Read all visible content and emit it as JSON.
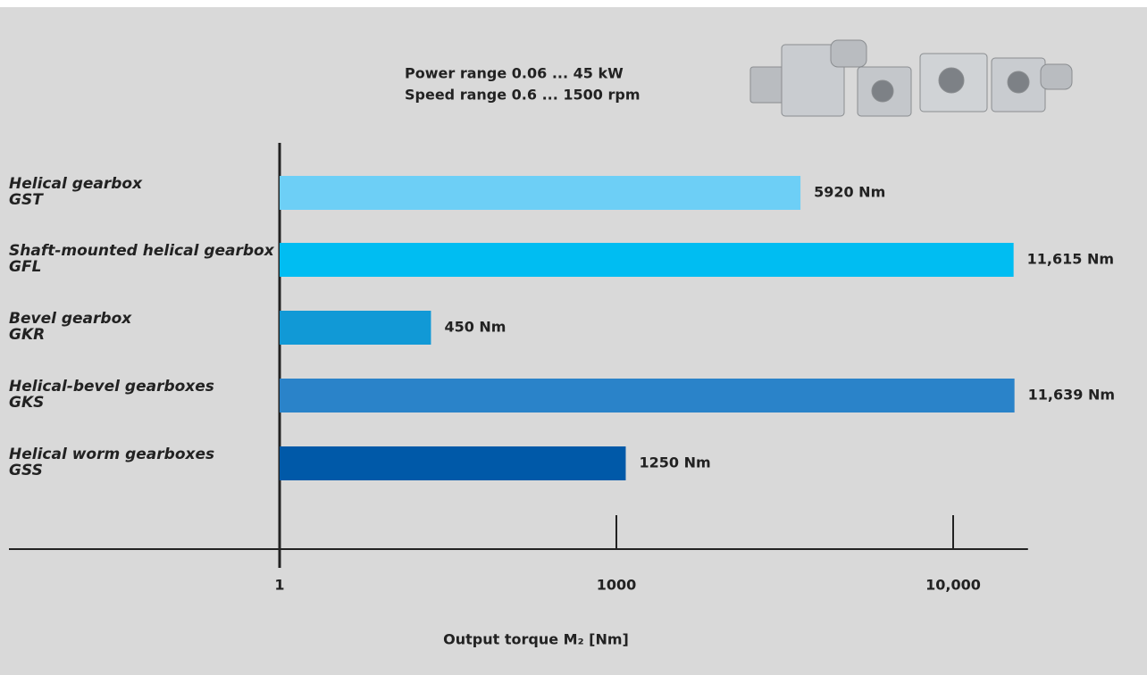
{
  "chart_data": {
    "type": "bar",
    "title_lines": [
      "Power range 0.06 ... 45 kW",
      "Speed range 0.6 ... 1500 rpm"
    ],
    "categories": [
      "Helical gearbox",
      "Shaft-mounted helical gearbox",
      "Bevel gearbox",
      "Helical-bevel gearboxes",
      "Helical worm gearboxes"
    ],
    "category_codes": [
      "GST",
      "GFL",
      "GKR",
      "GKS",
      "GSS"
    ],
    "values": [
      5920,
      11615,
      450,
      11639,
      1250
    ],
    "value_labels": [
      "5920 Nm",
      "11,615 Nm",
      "450 Nm",
      "11,639 Nm",
      "1250 Nm"
    ],
    "colors": [
      "#6dcff6",
      "#00bdf2",
      "#1199d6",
      "#2a83c9",
      "#0059a8"
    ],
    "x_label": "Output torque M₂ [Nm]",
    "xlim": [
      1,
      12000
    ],
    "xticks": [
      1,
      1000,
      {
        "value": 10000,
        "label": "10,000"
      }
    ]
  }
}
